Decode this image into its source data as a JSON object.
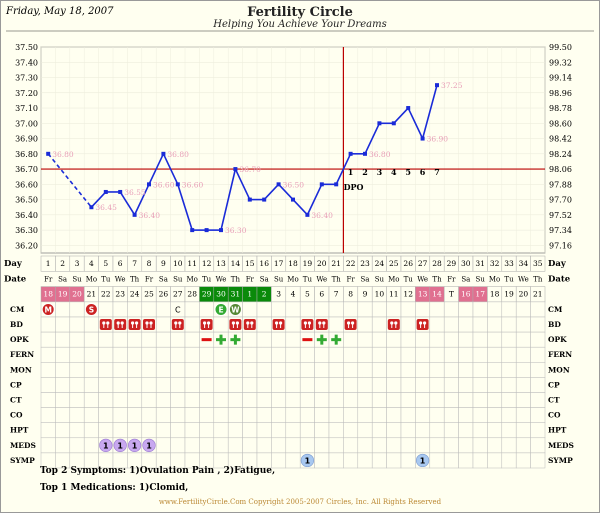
{
  "header": {
    "date": "Friday, May 18, 2007",
    "title": "Fertility Circle",
    "subtitle": "Helping You Achieve Your Dreams"
  },
  "chart_data": {
    "type": "line",
    "title": "Fertility Circle",
    "xlabel": "Day",
    "ylabel": "",
    "ylim_c": [
      36.15,
      37.5
    ],
    "y_ticks_c": [
      "37.50",
      "37.40",
      "37.30",
      "37.20",
      "37.10",
      "37.00",
      "36.90",
      "36.80",
      "36.70",
      "36.60",
      "36.50",
      "36.40",
      "36.30",
      "36.20"
    ],
    "y_ticks_f": [
      "99.50",
      "99.32",
      "99.14",
      "98.96",
      "98.78",
      "98.60",
      "98.42",
      "98.24",
      "98.06",
      "97.88",
      "97.70",
      "97.52",
      "97.34",
      "97.16"
    ],
    "days": [
      1,
      2,
      3,
      4,
      5,
      6,
      7,
      8,
      9,
      10,
      11,
      12,
      13,
      14,
      15,
      16,
      17,
      18,
      19,
      20,
      21,
      22,
      23,
      24,
      25,
      26,
      27,
      28,
      29,
      30,
      31,
      32,
      33,
      34,
      35
    ],
    "weekdays": [
      "Fr",
      "Sa",
      "Su",
      "Mo",
      "Tu",
      "We",
      "Th",
      "Fr",
      "Sa",
      "Su",
      "Mo",
      "Tu",
      "We",
      "Th",
      "Fr",
      "Sa",
      "Su",
      "Mo",
      "Tu",
      "We",
      "Th",
      "Fr",
      "Sa",
      "Su",
      "Mo",
      "Tu",
      "We",
      "Th",
      "Fr",
      "Sa",
      "Su",
      "Mo",
      "Tu",
      "We",
      "Th"
    ],
    "dates": [
      "18",
      "19",
      "20",
      "21",
      "22",
      "23",
      "24",
      "25",
      "26",
      "27",
      "28",
      "29",
      "30",
      "31",
      "1",
      "2",
      "3",
      "4",
      "5",
      "6",
      "7",
      "8",
      "9",
      "10",
      "11",
      "12",
      "13",
      "14",
      "T",
      "16",
      "17",
      "18",
      "19",
      "20",
      "21"
    ],
    "date_highlight_pink": [
      1,
      2,
      3,
      27,
      28,
      30,
      31
    ],
    "date_highlight_green": [
      12,
      13,
      14,
      15,
      16
    ],
    "temps": [
      {
        "day": 1,
        "t": 36.8
      },
      {
        "day": 4,
        "t": 36.45
      },
      {
        "day": 5,
        "t": 36.55
      },
      {
        "day": 6,
        "t": 36.55
      },
      {
        "day": 7,
        "t": 36.4
      },
      {
        "day": 8,
        "t": 36.6
      },
      {
        "day": 9,
        "t": 36.8
      },
      {
        "day": 10,
        "t": 36.6
      },
      {
        "day": 11,
        "t": 36.3
      },
      {
        "day": 12,
        "t": 36.3
      },
      {
        "day": 13,
        "t": 36.3
      },
      {
        "day": 14,
        "t": 36.7
      },
      {
        "day": 15,
        "t": 36.5
      },
      {
        "day": 16,
        "t": 36.5
      },
      {
        "day": 17,
        "t": 36.6
      },
      {
        "day": 18,
        "t": 36.5
      },
      {
        "day": 19,
        "t": 36.4
      },
      {
        "day": 20,
        "t": 36.6
      },
      {
        "day": 21,
        "t": 36.6
      },
      {
        "day": 22,
        "t": 36.8
      },
      {
        "day": 23,
        "t": 36.8
      },
      {
        "day": 24,
        "t": 37.0
      },
      {
        "day": 25,
        "t": 37.0
      },
      {
        "day": 26,
        "t": 37.1
      },
      {
        "day": 27,
        "t": 36.9
      },
      {
        "day": 28,
        "t": 37.25
      }
    ],
    "temp_labels": [
      {
        "day": 1,
        "text": "36.80"
      },
      {
        "day": 4,
        "text": "36.45"
      },
      {
        "day": 6,
        "text": "36.55"
      },
      {
        "day": 7,
        "text": "36.40"
      },
      {
        "day": 8,
        "text": "36.60"
      },
      {
        "day": 9,
        "text": "36.80"
      },
      {
        "day": 10,
        "text": "36.60"
      },
      {
        "day": 13,
        "text": "36.30"
      },
      {
        "day": 14,
        "text": "36.70"
      },
      {
        "day": 17,
        "text": "36.50"
      },
      {
        "day": 19,
        "text": "36.40"
      },
      {
        "day": 23,
        "text": "36.80"
      },
      {
        "day": 27,
        "text": "36.90"
      },
      {
        "day": 28,
        "text": "37.25"
      }
    ],
    "coverline_c": 36.7,
    "ovulation_day": 21,
    "dpo_label": "DPO",
    "dpo_numbers": [
      {
        "day": 22,
        "n": "1"
      },
      {
        "day": 23,
        "n": "2"
      },
      {
        "day": 24,
        "n": "3"
      },
      {
        "day": 25,
        "n": "4"
      },
      {
        "day": 26,
        "n": "5"
      },
      {
        "day": 27,
        "n": "6"
      },
      {
        "day": 28,
        "n": "7"
      }
    ],
    "rows": [
      "CM",
      "BD",
      "OPK",
      "FERN",
      "MON",
      "CP",
      "CT",
      "CO",
      "HPT",
      "MEDS",
      "SYMP"
    ],
    "row_day_label": "Day",
    "row_date_label": "Date",
    "cm_markers": [
      {
        "day": 1,
        "text": "M",
        "color": "#cc2222"
      },
      {
        "day": 4,
        "text": "S",
        "color": "#cc2222"
      },
      {
        "day": 10,
        "text": "C",
        "color": "none"
      },
      {
        "day": 13,
        "text": "E",
        "color": "#33aa33"
      },
      {
        "day": 14,
        "text": "W",
        "color": "#558833"
      }
    ],
    "bd_days": [
      5,
      6,
      7,
      8,
      10,
      12,
      14,
      15,
      17,
      19,
      20,
      22,
      25,
      27
    ],
    "opk_negative": [
      12,
      19
    ],
    "opk_positive": [
      13,
      14,
      20,
      21
    ],
    "meds": [
      {
        "day": 5,
        "text": "1"
      },
      {
        "day": 6,
        "text": "1"
      },
      {
        "day": 7,
        "text": "1"
      },
      {
        "day": 8,
        "text": "1"
      }
    ],
    "symp": [
      {
        "day": 19,
        "text": "1"
      },
      {
        "day": 27,
        "text": "1"
      }
    ]
  },
  "footer": {
    "symptoms": "Top 2 Symptoms: 1)Ovulation Pain , 2)Fatigue,",
    "medications": "Top 1 Medications: 1)Clomid,",
    "copyright": "www.FertilityCircle.Com  Copyright 2005-2007 Circles, Inc.  All Rights Reserved"
  },
  "colors": {
    "line": "#1a2bd8",
    "grid": "#bbbbbb",
    "coverline": "#bb0000",
    "pink": "#e07090",
    "green": "#0a8a0a",
    "temp_label": "#e8a0b8"
  }
}
